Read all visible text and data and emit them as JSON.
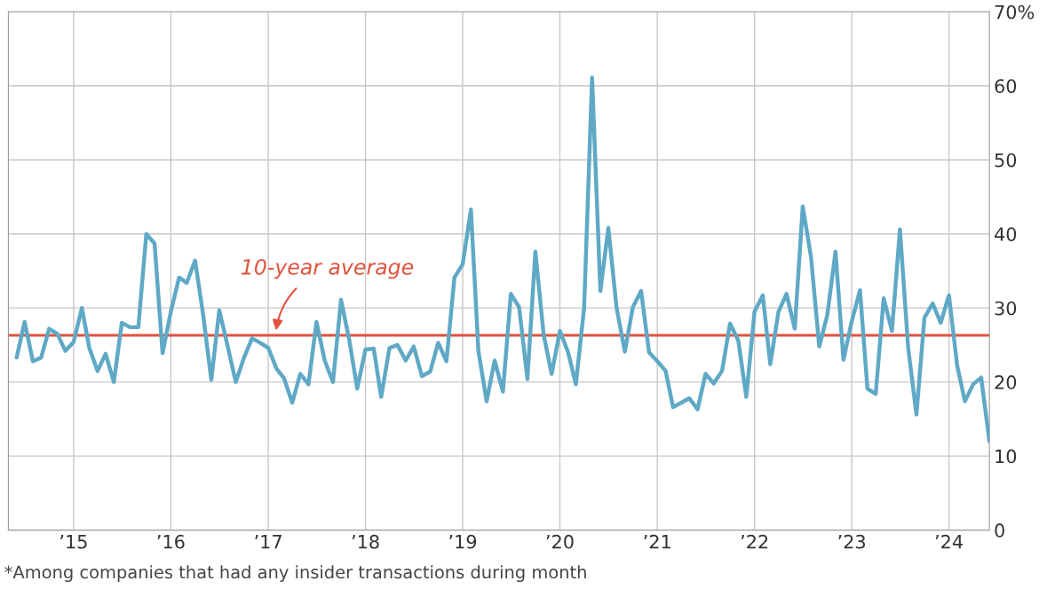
{
  "chart_data": {
    "type": "line",
    "x": [
      "2014-06",
      "2014-07",
      "2014-08",
      "2014-09",
      "2014-10",
      "2014-11",
      "2014-12",
      "2015-01",
      "2015-02",
      "2015-03",
      "2015-04",
      "2015-05",
      "2015-06",
      "2015-07",
      "2015-08",
      "2015-09",
      "2015-10",
      "2015-11",
      "2015-12",
      "2016-01",
      "2016-02",
      "2016-03",
      "2016-04",
      "2016-05",
      "2016-06",
      "2016-07",
      "2016-08",
      "2016-09",
      "2016-10",
      "2016-11",
      "2016-12",
      "2017-01",
      "2017-02",
      "2017-03",
      "2017-04",
      "2017-05",
      "2017-06",
      "2017-07",
      "2017-08",
      "2017-09",
      "2017-10",
      "2017-11",
      "2017-12",
      "2018-01",
      "2018-02",
      "2018-03",
      "2018-04",
      "2018-05",
      "2018-06",
      "2018-07",
      "2018-08",
      "2018-09",
      "2018-10",
      "2018-11",
      "2018-12",
      "2019-01",
      "2019-02",
      "2019-03",
      "2019-04",
      "2019-05",
      "2019-06",
      "2019-07",
      "2019-08",
      "2019-09",
      "2019-10",
      "2019-11",
      "2019-12",
      "2020-01",
      "2020-02",
      "2020-03",
      "2020-04",
      "2020-05",
      "2020-06",
      "2020-07",
      "2020-08",
      "2020-09",
      "2020-10",
      "2020-11",
      "2020-12",
      "2021-01",
      "2021-02",
      "2021-03",
      "2021-04",
      "2021-05",
      "2021-06",
      "2021-07",
      "2021-08",
      "2021-09",
      "2021-10",
      "2021-11",
      "2021-12",
      "2022-01",
      "2022-02",
      "2022-03",
      "2022-04",
      "2022-05",
      "2022-06",
      "2022-07",
      "2022-08",
      "2022-09",
      "2022-10",
      "2022-11",
      "2022-12",
      "2023-01",
      "2023-02",
      "2023-03",
      "2023-04",
      "2023-05",
      "2023-06",
      "2023-07",
      "2023-08",
      "2023-09",
      "2023-10",
      "2023-11",
      "2023-12",
      "2024-01",
      "2024-02",
      "2024-03",
      "2024-04",
      "2024-05",
      "2024-06"
    ],
    "series": [
      {
        "color": "#5fa9c6",
        "values": [
          23.3,
          28.1,
          22.8,
          23.3,
          27.2,
          26.5,
          24.2,
          25.4,
          30.0,
          24.6,
          21.5,
          23.8,
          20.0,
          28.0,
          27.4,
          27.4,
          40.0,
          38.7,
          23.9,
          29.5,
          34.1,
          33.4,
          36.4,
          29.2,
          20.3,
          29.7,
          24.9,
          20.0,
          23.2,
          25.9,
          25.3,
          24.6,
          21.8,
          20.5,
          17.2,
          21.1,
          19.7,
          28.1,
          22.9,
          20.0,
          31.1,
          25.7,
          19.1,
          24.4,
          24.5,
          18.0,
          24.6,
          25.0,
          22.9,
          24.8,
          20.8,
          21.4,
          25.3,
          22.8,
          34.1,
          35.9,
          43.3,
          24.2,
          17.4,
          22.9,
          18.7,
          31.9,
          30.1,
          20.4,
          37.6,
          26.4,
          21.1,
          26.9,
          24.0,
          19.7,
          30.0,
          61.1,
          32.3,
          40.8,
          30.0,
          24.1,
          30.1,
          32.3,
          24.0,
          22.8,
          21.5,
          16.6,
          17.2,
          17.8,
          16.3,
          21.1,
          19.8,
          21.5,
          27.9,
          25.6,
          18.0,
          29.5,
          31.7,
          22.4,
          29.5,
          31.9,
          27.2,
          43.7,
          36.9,
          24.8,
          29.0,
          37.6,
          23.0,
          28.2,
          32.4,
          19.1,
          18.4,
          31.3,
          26.9,
          40.6,
          24.6,
          15.6,
          28.7,
          30.6,
          28.0,
          31.7,
          22.2,
          17.4,
          19.7,
          20.6,
          12.0
        ]
      }
    ],
    "xlim": [
      "2014-05",
      "2024-06"
    ],
    "xticks": [
      {
        "value": "2015-01",
        "label": "’15"
      },
      {
        "value": "2016-01",
        "label": "’16"
      },
      {
        "value": "2017-01",
        "label": "’17"
      },
      {
        "value": "2018-01",
        "label": "’18"
      },
      {
        "value": "2019-01",
        "label": "’19"
      },
      {
        "value": "2020-01",
        "label": "’20"
      },
      {
        "value": "2021-01",
        "label": "’21"
      },
      {
        "value": "2022-01",
        "label": "’22"
      },
      {
        "value": "2023-01",
        "label": "’23"
      },
      {
        "value": "2024-01",
        "label": "’24"
      }
    ],
    "ylim": [
      0,
      70
    ],
    "yticks": [
      0,
      10,
      20,
      30,
      40,
      50,
      60,
      {
        "value": 70,
        "label": "70%"
      }
    ],
    "ref_lines": [
      {
        "axis": "y",
        "value": 26.3,
        "label": "10-year average",
        "color": "#e0533d"
      }
    ],
    "grid": true,
    "marker": "none",
    "line_style": "solid",
    "annotations": [
      "*Among companies that had any insider transactions during month"
    ]
  }
}
